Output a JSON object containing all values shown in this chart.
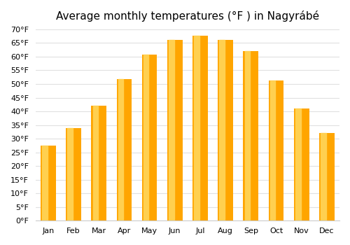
{
  "title": "Average monthly temperatures (°F ) in Nagyrábé",
  "months": [
    "Jan",
    "Feb",
    "Mar",
    "Apr",
    "May",
    "Jun",
    "Jul",
    "Aug",
    "Sep",
    "Oct",
    "Nov",
    "Dec"
  ],
  "values": [
    27.5,
    33.8,
    42.1,
    51.8,
    60.8,
    66.2,
    67.6,
    66.2,
    62.1,
    51.3,
    41.0,
    32.0
  ],
  "ylim": [
    0,
    70
  ],
  "yticks": [
    0,
    5,
    10,
    15,
    20,
    25,
    30,
    35,
    40,
    45,
    50,
    55,
    60,
    65,
    70
  ],
  "bar_color_main": "#FFA500",
  "bar_color_light": "#FFD050",
  "background_color": "#ffffff",
  "grid_color": "#e0e0e0",
  "title_fontsize": 11
}
